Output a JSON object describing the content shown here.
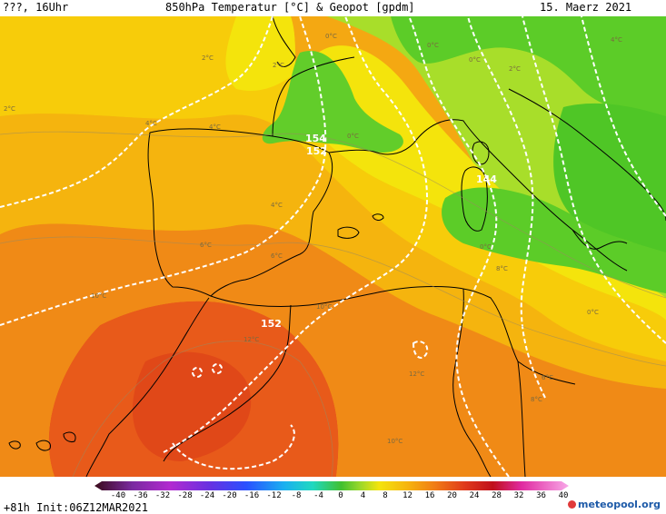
{
  "header": {
    "left": "???, 16Uhr",
    "title": "850hPa Temperatur [°C] & Geopot [gpdm]",
    "date": "15. Maerz 2021"
  },
  "map": {
    "geopotential_labels": [
      "154",
      "152",
      "144",
      "152"
    ],
    "temperature_labels": [
      "2°C",
      "2°C",
      "2°C",
      "2°C",
      "4°C",
      "4°C",
      "4°C",
      "6°C",
      "6°C",
      "8°C",
      "0°C",
      "0°C",
      "0°C",
      "0°C",
      "0°C",
      "0°C",
      "10°C",
      "10°C",
      "10°C",
      "12°C",
      "12°C",
      "8°C",
      "6°C",
      "4°C"
    ],
    "colors": {
      "ocean_warm": "#f28c14",
      "land_hot": "#e8501c",
      "orange": "#f5a10f",
      "yellow_orange": "#f7c20a",
      "yellow": "#f4e60c",
      "light_green": "#a8df2a",
      "green": "#5ccc28",
      "coast": "#000000",
      "isoline": "#ffffff"
    }
  },
  "legend": {
    "labels": [
      "-40",
      "-36",
      "-32",
      "-28",
      "-24",
      "-20",
      "-16",
      "-12",
      "-8",
      "-4",
      "0",
      "4",
      "8",
      "12",
      "16",
      "20",
      "24",
      "28",
      "32",
      "36",
      "40"
    ]
  },
  "footer": {
    "run": "+81h Init:06Z12MAR2021",
    "brand": "meteopool.org"
  }
}
